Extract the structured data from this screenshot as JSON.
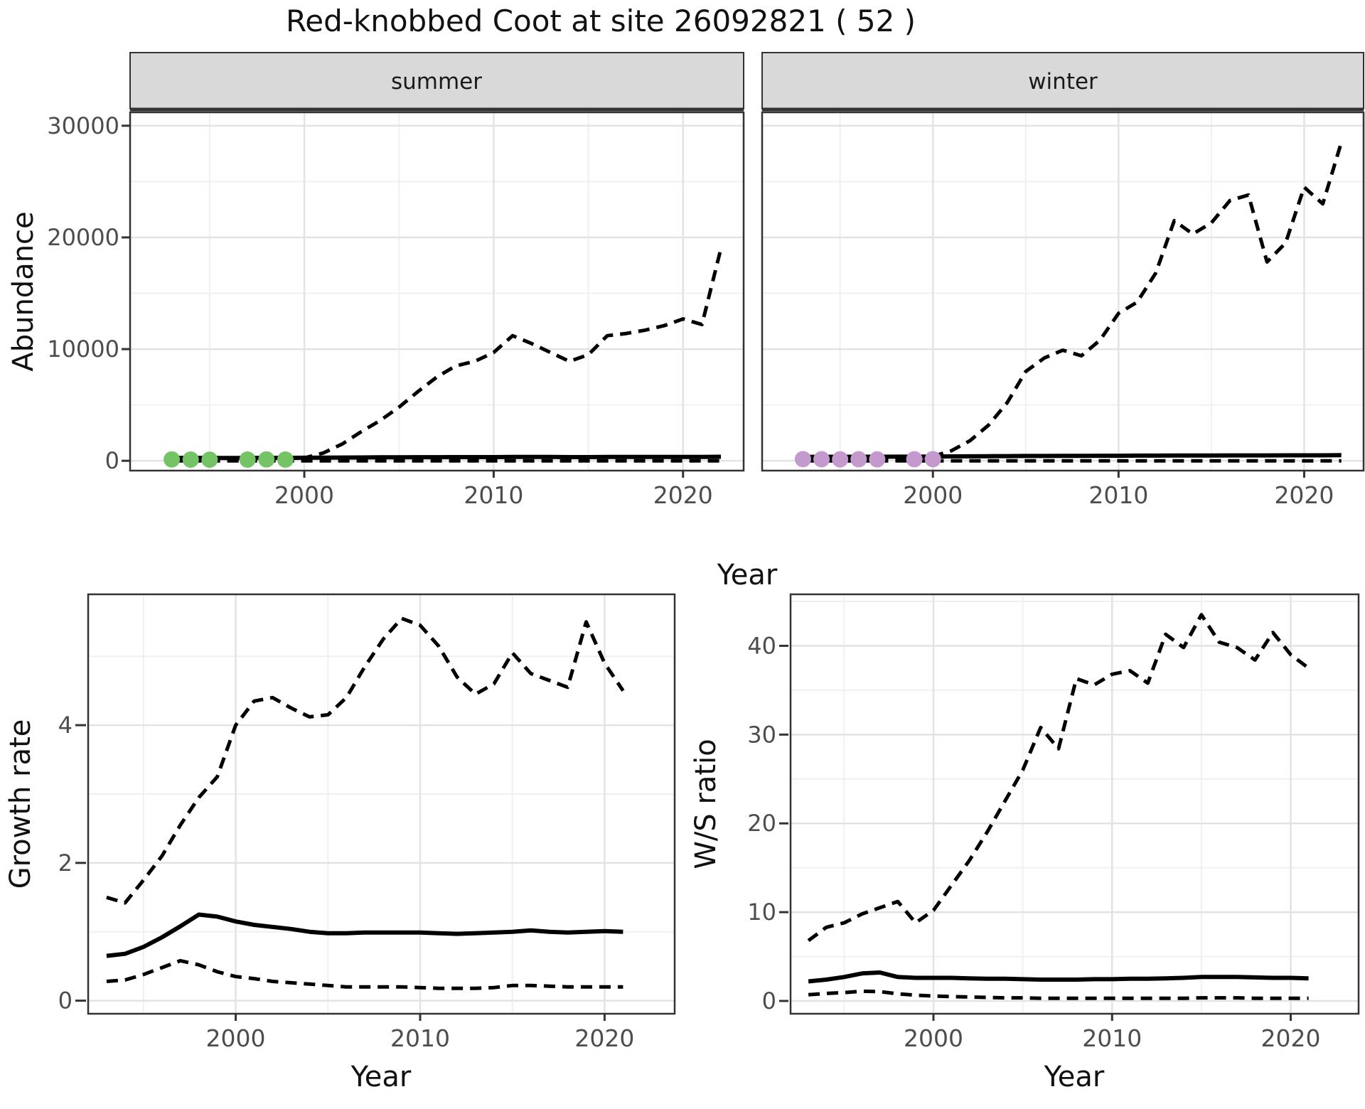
{
  "title": "Red-knobbed Coot at site 26092821 ( 52 )",
  "facets": {
    "summer": "summer",
    "winter": "winter"
  },
  "axis_titles": {
    "abundance": "Abundance",
    "year": "Year",
    "growth_rate": "Growth rate",
    "ws_ratio": "W/S ratio"
  },
  "colors": {
    "summer_points": "#74c365",
    "winter_points": "#c49ace",
    "line": "#000000",
    "strip_bg": "#d9d9d9",
    "panel_border": "#333333",
    "grid_major": "#e3e3e3",
    "grid_minor": "#f0f0f0",
    "tick_text": "#4d4d4d",
    "title_text": "#111111"
  },
  "chart_data": [
    {
      "id": "abundance-summer",
      "type": "line",
      "facet": "summer",
      "xlabel": "Year",
      "ylabel": "Abundance",
      "x": [
        1993,
        1994,
        1995,
        1996,
        1997,
        1998,
        1999,
        2000,
        2001,
        2002,
        2003,
        2004,
        2005,
        2006,
        2007,
        2008,
        2009,
        2010,
        2011,
        2012,
        2013,
        2014,
        2015,
        2016,
        2017,
        2018,
        2019,
        2020,
        2021,
        2022
      ],
      "series": [
        {
          "name": "upper-ci",
          "style": "dashed",
          "values": [
            150,
            150,
            150,
            130,
            150,
            150,
            160,
            250,
            700,
            1500,
            2600,
            3600,
            4800,
            6200,
            7500,
            8500,
            8900,
            9700,
            11200,
            10500,
            9700,
            8900,
            9500,
            11200,
            11400,
            11700,
            12100,
            12700,
            12200,
            19000
          ]
        },
        {
          "name": "lower-ci",
          "style": "dashed",
          "values": [
            0,
            0,
            0,
            0,
            0,
            0,
            0,
            0,
            0,
            0,
            0,
            0,
            0,
            0,
            0,
            0,
            0,
            0,
            0,
            0,
            0,
            0,
            0,
            0,
            0,
            0,
            0,
            0,
            0,
            0
          ]
        },
        {
          "name": "estimate",
          "style": "solid",
          "values": [
            250,
            260,
            260,
            250,
            260,
            260,
            260,
            270,
            280,
            290,
            300,
            310,
            310,
            320,
            320,
            330,
            330,
            330,
            340,
            340,
            340,
            330,
            330,
            340,
            340,
            350,
            350,
            350,
            350,
            360
          ]
        }
      ],
      "observed_points": {
        "color": "#74c365",
        "x": [
          1993,
          1994,
          1995,
          1997,
          1998,
          1999
        ],
        "values": [
          120,
          110,
          100,
          110,
          120,
          110
        ]
      },
      "xlim": [
        1990.8,
        2023.2
      ],
      "ylim": [
        -880,
        31200
      ],
      "xticks": [
        2000,
        2010,
        2020
      ],
      "xminor": [
        1995,
        2005,
        2015
      ],
      "yticks": [
        0,
        10000,
        20000,
        30000
      ],
      "yminor": [
        5000,
        15000,
        25000
      ]
    },
    {
      "id": "abundance-winter",
      "type": "line",
      "facet": "winter",
      "xlabel": "Year",
      "ylabel": "Abundance",
      "x": [
        1993,
        1994,
        1995,
        1996,
        1997,
        1998,
        1999,
        2000,
        2001,
        2002,
        2003,
        2004,
        2005,
        2006,
        2007,
        2008,
        2009,
        2010,
        2011,
        2012,
        2013,
        2014,
        2015,
        2016,
        2017,
        2018,
        2019,
        2020,
        2021,
        2022
      ],
      "series": [
        {
          "name": "upper-ci",
          "style": "dashed",
          "values": [
            250,
            250,
            250,
            240,
            250,
            260,
            280,
            400,
            900,
            1800,
            3200,
            5200,
            8000,
            9200,
            9900,
            9400,
            10800,
            13200,
            14200,
            16800,
            21500,
            20300,
            21300,
            23300,
            23800,
            17800,
            19500,
            24500,
            23000,
            28500
          ]
        },
        {
          "name": "lower-ci",
          "style": "dashed",
          "values": [
            0,
            0,
            0,
            0,
            0,
            0,
            0,
            0,
            0,
            0,
            0,
            0,
            0,
            0,
            0,
            0,
            0,
            0,
            0,
            0,
            0,
            0,
            0,
            0,
            0,
            0,
            0,
            0,
            0,
            0
          ]
        },
        {
          "name": "estimate",
          "style": "solid",
          "values": [
            350,
            360,
            360,
            360,
            360,
            370,
            370,
            380,
            390,
            400,
            410,
            420,
            430,
            430,
            440,
            440,
            450,
            450,
            460,
            460,
            470,
            470,
            470,
            480,
            480,
            480,
            490,
            490,
            490,
            500
          ]
        }
      ],
      "observed_points": {
        "color": "#c49ace",
        "x": [
          1993,
          1994,
          1995,
          1996,
          1997,
          1999,
          2000
        ],
        "values": [
          150,
          140,
          130,
          140,
          130,
          140,
          150
        ]
      },
      "xlim": [
        1990.8,
        2023.2
      ],
      "ylim": [
        -880,
        31200
      ],
      "xticks": [
        2000,
        2010,
        2020
      ],
      "xminor": [
        1995,
        2005,
        2015
      ],
      "yticks": [
        0,
        10000,
        20000,
        30000
      ],
      "yminor": [
        5000,
        15000,
        25000
      ]
    },
    {
      "id": "growth-rate",
      "type": "line",
      "facet": null,
      "xlabel": "Year",
      "ylabel": "Growth rate",
      "x": [
        1993,
        1994,
        1995,
        1996,
        1997,
        1998,
        1999,
        2000,
        2001,
        2002,
        2003,
        2004,
        2005,
        2006,
        2007,
        2008,
        2009,
        2010,
        2011,
        2012,
        2013,
        2014,
        2015,
        2016,
        2017,
        2018,
        2019,
        2020,
        2021
      ],
      "series": [
        {
          "name": "upper-ci",
          "style": "dashed",
          "values": [
            1.5,
            1.42,
            1.75,
            2.1,
            2.55,
            2.95,
            3.25,
            4.0,
            4.35,
            4.4,
            4.25,
            4.12,
            4.15,
            4.4,
            4.85,
            5.25,
            5.55,
            5.45,
            5.15,
            4.7,
            4.45,
            4.6,
            5.05,
            4.75,
            4.65,
            4.55,
            5.5,
            4.9,
            4.5
          ]
        },
        {
          "name": "lower-ci",
          "style": "dashed",
          "values": [
            0.28,
            0.3,
            0.38,
            0.48,
            0.58,
            0.52,
            0.42,
            0.35,
            0.32,
            0.28,
            0.26,
            0.24,
            0.22,
            0.2,
            0.2,
            0.2,
            0.2,
            0.19,
            0.18,
            0.18,
            0.18,
            0.19,
            0.22,
            0.22,
            0.21,
            0.2,
            0.2,
            0.2,
            0.2
          ]
        },
        {
          "name": "estimate",
          "style": "solid",
          "values": [
            0.65,
            0.68,
            0.78,
            0.92,
            1.08,
            1.25,
            1.22,
            1.15,
            1.1,
            1.07,
            1.04,
            1.0,
            0.98,
            0.98,
            0.99,
            0.99,
            0.99,
            0.99,
            0.98,
            0.97,
            0.98,
            0.99,
            1.0,
            1.02,
            1.0,
            0.99,
            1.0,
            1.01,
            1.0
          ]
        }
      ],
      "observed_points": null,
      "xlim": [
        1992.0,
        2023.8
      ],
      "ylim": [
        -0.19,
        5.9
      ],
      "xticks": [
        2000,
        2010,
        2020
      ],
      "xminor": [
        1995,
        2005,
        2015
      ],
      "yticks": [
        0,
        2,
        4
      ],
      "yminor": [
        1,
        3,
        5
      ]
    },
    {
      "id": "ws-ratio",
      "type": "line",
      "facet": null,
      "xlabel": "Year",
      "ylabel": "W/S ratio",
      "x": [
        1993,
        1994,
        1995,
        1996,
        1997,
        1998,
        1999,
        2000,
        2001,
        2002,
        2003,
        2004,
        2005,
        2006,
        2007,
        2008,
        2009,
        2010,
        2011,
        2012,
        2013,
        2014,
        2015,
        2016,
        2017,
        2018,
        2019,
        2020,
        2021
      ],
      "series": [
        {
          "name": "upper-ci",
          "style": "dashed",
          "values": [
            6.8,
            8.3,
            8.8,
            9.8,
            10.5,
            11.2,
            8.8,
            10.2,
            13.0,
            15.8,
            19.0,
            22.5,
            26.0,
            30.8,
            28.4,
            36.3,
            35.6,
            36.8,
            37.2,
            35.8,
            41.3,
            39.8,
            43.5,
            40.4,
            39.8,
            38.4,
            41.5,
            39.0,
            37.5
          ]
        },
        {
          "name": "lower-ci",
          "style": "dashed",
          "values": [
            0.7,
            0.85,
            0.95,
            1.1,
            1.05,
            0.8,
            0.65,
            0.55,
            0.5,
            0.45,
            0.4,
            0.35,
            0.35,
            0.3,
            0.3,
            0.3,
            0.3,
            0.3,
            0.3,
            0.3,
            0.3,
            0.3,
            0.35,
            0.35,
            0.35,
            0.3,
            0.3,
            0.3,
            0.3
          ]
        },
        {
          "name": "estimate",
          "style": "solid",
          "values": [
            2.2,
            2.4,
            2.7,
            3.1,
            3.2,
            2.7,
            2.6,
            2.6,
            2.6,
            2.55,
            2.5,
            2.5,
            2.45,
            2.4,
            2.4,
            2.4,
            2.45,
            2.45,
            2.5,
            2.5,
            2.55,
            2.6,
            2.7,
            2.7,
            2.7,
            2.65,
            2.6,
            2.6,
            2.55
          ]
        }
      ],
      "observed_points": null,
      "xlim": [
        1992.0,
        2023.8
      ],
      "ylim": [
        -1.44,
        45.8
      ],
      "xticks": [
        2000,
        2010,
        2020
      ],
      "xminor": [
        1995,
        2005,
        2015
      ],
      "yticks": [
        0,
        10,
        20,
        30,
        40
      ],
      "yminor": [
        5,
        15,
        25,
        35,
        45
      ]
    }
  ]
}
